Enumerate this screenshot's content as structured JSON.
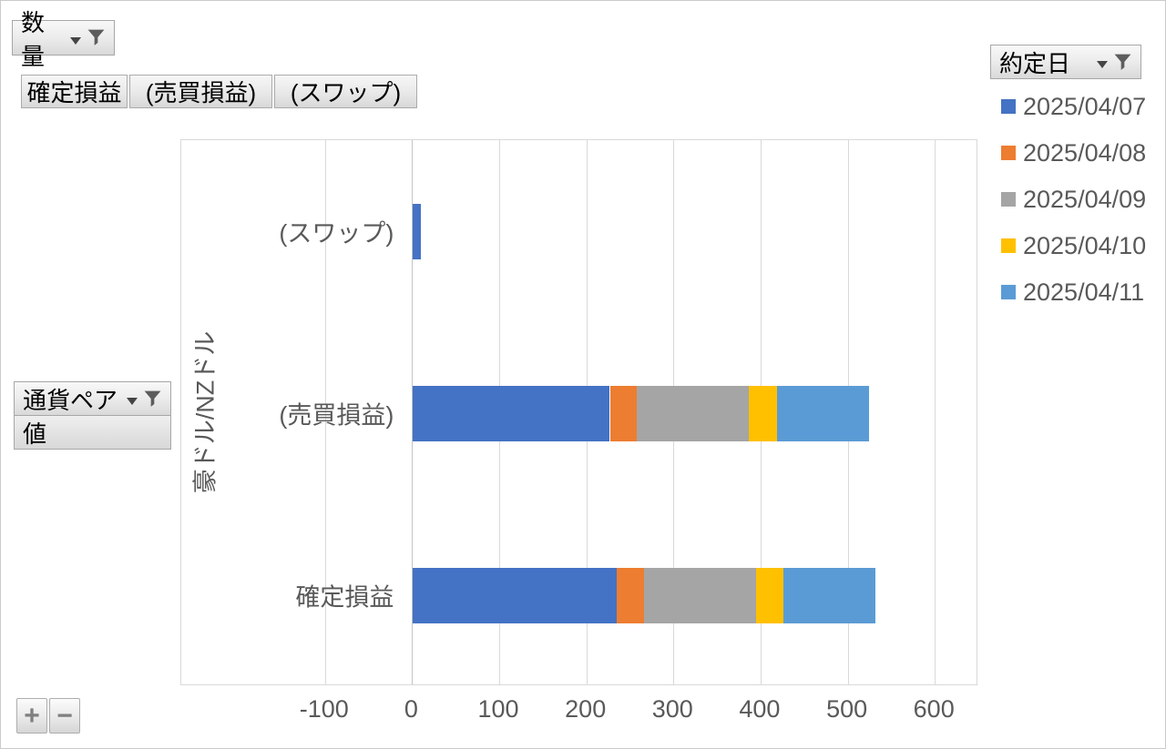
{
  "field_buttons": {
    "values_button": "数量",
    "legend_button": "約定日",
    "axis_button": "通貨ペア",
    "values_label": "値",
    "category_buttons": [
      "確定損益",
      "(売買損益)",
      "(スワップ)"
    ],
    "expand_label": "+",
    "collapse_label": "−"
  },
  "chart_data": {
    "type": "bar",
    "orientation": "horizontal",
    "stacked": true,
    "grid": true,
    "legend_position": "right",
    "legend_title": "約定日",
    "group_label": "豪ドル/NZドル",
    "categories": [
      "(スワップ)",
      "(売買損益)",
      "確定損益"
    ],
    "x_ticks": [
      -100,
      0,
      100,
      200,
      300,
      400,
      500,
      600
    ],
    "xlim": [
      -265,
      650
    ],
    "series": [
      {
        "name": "2025/04/07",
        "color": "#4472C4",
        "values": [
          9,
          226,
          234
        ]
      },
      {
        "name": "2025/04/08",
        "color": "#ED7D31",
        "values": [
          0,
          31,
          31
        ]
      },
      {
        "name": "2025/04/09",
        "color": "#A5A5A5",
        "values": [
          0,
          128,
          129
        ]
      },
      {
        "name": "2025/04/10",
        "color": "#FFC000",
        "values": [
          0,
          33,
          31
        ]
      },
      {
        "name": "2025/04/11",
        "color": "#5B9BD5",
        "values": [
          0,
          106,
          106
        ]
      }
    ]
  }
}
